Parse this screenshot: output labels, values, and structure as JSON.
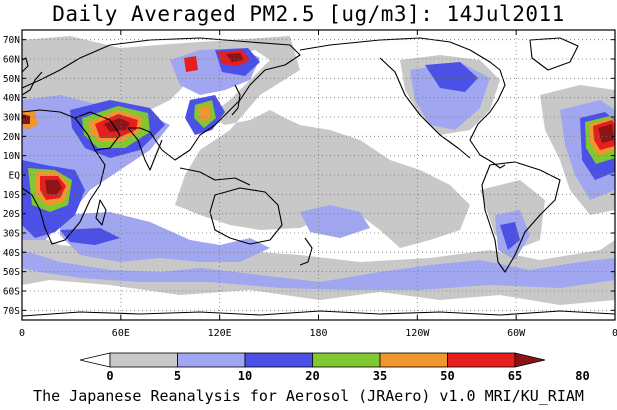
{
  "title": "Daily Averaged PM2.5 [ug/m3]: 14Jul2011",
  "footer": "The Japanese Reanalysis for Aerosol (JRAero) v1.0 MRI/KU_RIAM",
  "map": {
    "projection": "equirectangular",
    "lon_range": [
      0,
      360
    ],
    "lat_range": [
      -75,
      75
    ],
    "lat_labels": [
      "70N",
      "60N",
      "50N",
      "40N",
      "30N",
      "20N",
      "10N",
      "EQ",
      "10S",
      "20S",
      "30S",
      "40S",
      "50S",
      "60S",
      "70S"
    ],
    "lat_values": [
      70,
      60,
      50,
      40,
      30,
      20,
      10,
      0,
      -10,
      -20,
      -30,
      -40,
      -50,
      -60,
      -70
    ],
    "lon_labels": [
      "0",
      "60E",
      "120E",
      "180",
      "120W",
      "60W",
      "0"
    ],
    "lon_values": [
      0,
      60,
      120,
      180,
      240,
      300,
      360
    ]
  },
  "colorbar": {
    "ticks": [
      "0",
      "5",
      "10",
      "20",
      "35",
      "50",
      "65",
      "80"
    ],
    "colors": [
      "#ffffff",
      "#c8c8c8",
      "#a0a6f0",
      "#4b50e6",
      "#7fc832",
      "#f0962d",
      "#e61e1e",
      "#8c1414"
    ]
  }
}
